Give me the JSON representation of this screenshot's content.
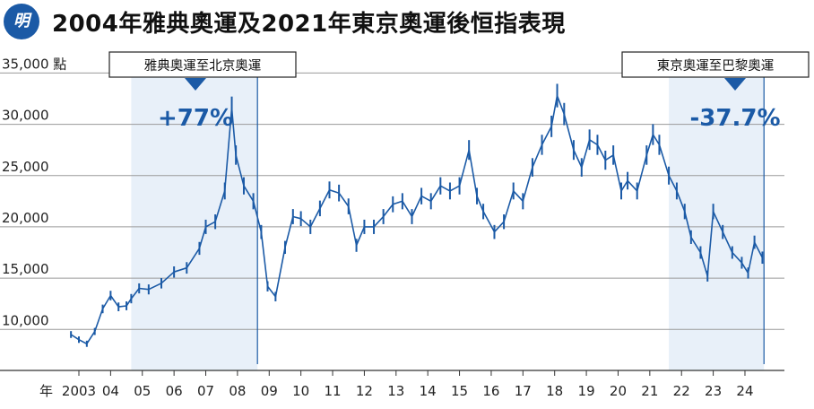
{
  "header": {
    "logo_text": "明",
    "title": "2004年雅典奧運及2021年東京奧運後恒指表現"
  },
  "colors": {
    "accent": "#1b5aa6",
    "shade": "#e8f0f9",
    "grid": "#9a9a9a"
  },
  "chart_data": {
    "type": "line",
    "title": "2004年雅典奧運及2021年東京奧運後恒指表現",
    "ylabel_unit": "點",
    "ylim": [
      6000,
      36000
    ],
    "y_ticks": [
      10000,
      15000,
      20000,
      25000,
      30000,
      35000
    ],
    "y_tick_labels": [
      "10,000",
      "15,000",
      "20,000",
      "25,000",
      "30,000",
      "35,000"
    ],
    "xlim": [
      2002.6,
      2024.8
    ],
    "x_prefix": "年",
    "x_ticks": [
      2003,
      2004,
      2005,
      2006,
      2007,
      2008,
      2009,
      2010,
      2011,
      2012,
      2013,
      2014,
      2015,
      2016,
      2017,
      2018,
      2019,
      2020,
      2021,
      2022,
      2023,
      2024
    ],
    "x_tick_labels": [
      "2003",
      "04",
      "05",
      "06",
      "07",
      "08",
      "09",
      "10",
      "11",
      "12",
      "13",
      "14",
      "15",
      "16",
      "17",
      "18",
      "19",
      "20",
      "21",
      "22",
      "23",
      "24"
    ],
    "grid": "horizontal",
    "series": [
      {
        "x": [
          2002.75,
          2003.0,
          2003.25,
          2003.5,
          2003.75,
          2004.0,
          2004.25,
          2004.5,
          2004.65,
          2004.9,
          2005.2,
          2005.6,
          2006.0,
          2006.4,
          2006.8,
          2007.0,
          2007.3,
          2007.6,
          2007.82,
          2007.95,
          2008.2,
          2008.5,
          2008.75,
          2008.95,
          2009.2,
          2009.5,
          2009.75,
          2010.0,
          2010.3,
          2010.6,
          2010.9,
          2011.2,
          2011.5,
          2011.75,
          2012.0,
          2012.3,
          2012.6,
          2012.9,
          2013.2,
          2013.5,
          2013.8,
          2014.1,
          2014.4,
          2014.7,
          2015.0,
          2015.3,
          2015.55,
          2015.75,
          2016.1,
          2016.4,
          2016.7,
          2017.0,
          2017.3,
          2017.6,
          2017.9,
          2018.08,
          2018.3,
          2018.6,
          2018.85,
          2019.1,
          2019.35,
          2019.6,
          2019.85,
          2020.1,
          2020.3,
          2020.6,
          2020.9,
          2021.1,
          2021.3,
          2021.6,
          2021.85,
          2022.1,
          2022.3,
          2022.6,
          2022.82,
          2023.0,
          2023.3,
          2023.6,
          2023.9,
          2024.1,
          2024.3,
          2024.55
        ],
        "values": [
          9500,
          9000,
          8600,
          9800,
          12000,
          13300,
          12200,
          12300,
          13000,
          14000,
          13900,
          14500,
          15600,
          16000,
          17900,
          20000,
          20500,
          23500,
          31600,
          27000,
          24000,
          22500,
          19500,
          14200,
          13200,
          18000,
          21000,
          20800,
          20000,
          21800,
          23600,
          23300,
          22000,
          18200,
          20000,
          20000,
          21000,
          22200,
          22500,
          21000,
          23000,
          22500,
          24000,
          23500,
          24000,
          27500,
          23000,
          21500,
          19500,
          20500,
          23500,
          22500,
          25800,
          28000,
          29800,
          32800,
          31000,
          27500,
          25800,
          28500,
          28000,
          26500,
          27000,
          23500,
          24500,
          23500,
          27000,
          29000,
          28000,
          25000,
          23500,
          21500,
          19000,
          17500,
          15200,
          21500,
          19500,
          17500,
          16500,
          15500,
          18500,
          17000
        ]
      }
    ],
    "annotations": [
      {
        "label": "雅典奧運至北京奧運",
        "change": "+77%",
        "x_start": 2004.65,
        "x_end": 2008.63
      },
      {
        "label": "東京奧運至巴黎奧運",
        "change": "-37.7%",
        "x_start": 2021.6,
        "x_end": 2024.6
      }
    ]
  }
}
